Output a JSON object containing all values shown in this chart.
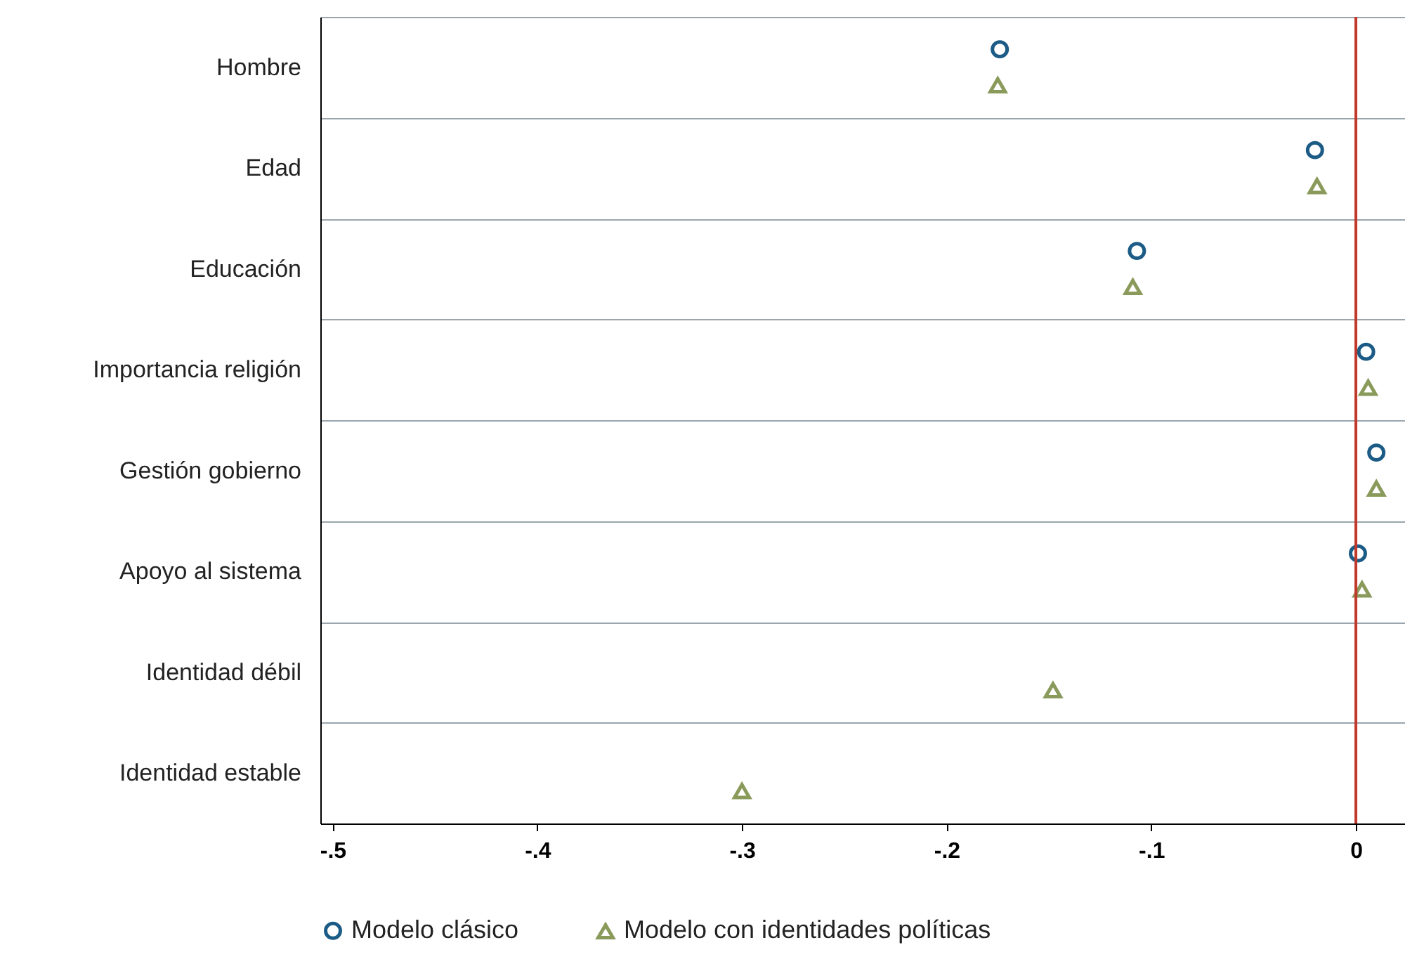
{
  "chart_data": {
    "type": "scatter",
    "orientation": "horizontal",
    "categories": [
      "Hombre",
      "Edad",
      "Educación",
      "Importancia religión",
      "Gestión gobierno",
      "Apoyo al sistema",
      "Identidad débil",
      "Identidad estable"
    ],
    "series": [
      {
        "name": "Modelo clásico",
        "color": "#1b5b86",
        "marker": "circle",
        "values": [
          -0.174,
          -0.02,
          -0.107,
          0.005,
          0.01,
          0.001,
          null,
          null
        ]
      },
      {
        "name": "Modelo con identidades políticas",
        "color": "#8a9a5b",
        "marker": "triangle",
        "values": [
          -0.175,
          -0.019,
          -0.109,
          0.006,
          0.01,
          0.003,
          -0.148,
          -0.3
        ]
      }
    ],
    "xlim": [
      -0.506,
      0.024
    ],
    "xticks": [
      {
        "value": -0.5,
        "label": "-.5"
      },
      {
        "value": -0.4,
        "label": "-.4"
      },
      {
        "value": -0.3,
        "label": "-.3"
      },
      {
        "value": -0.2,
        "label": "-.2"
      },
      {
        "value": -0.1,
        "label": "-.1"
      },
      0
    ],
    "ref_lines": [
      {
        "axis": "x",
        "value": 0,
        "color": "#c0392b"
      }
    ],
    "grid": "y",
    "legend": "bottom"
  }
}
